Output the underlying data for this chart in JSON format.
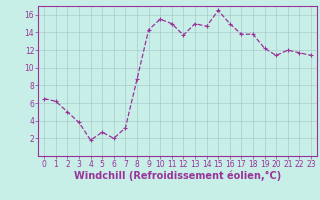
{
  "x": [
    0,
    1,
    2,
    3,
    4,
    5,
    6,
    7,
    8,
    9,
    10,
    11,
    12,
    13,
    14,
    15,
    16,
    17,
    18,
    19,
    20,
    21,
    22,
    23
  ],
  "y": [
    6.5,
    6.2,
    5.0,
    3.8,
    1.8,
    2.7,
    2.0,
    3.2,
    8.7,
    14.3,
    15.5,
    15.0,
    13.7,
    15.0,
    14.7,
    16.5,
    15.0,
    13.8,
    13.8,
    12.2,
    11.4,
    12.0,
    11.7,
    11.4
  ],
  "line_color": "#993399",
  "marker": "+",
  "background_color": "#c8eee8",
  "grid_color": "#aacccc",
  "xlabel": "Windchill (Refroidissement éolien,°C)",
  "ylim": [
    0,
    17
  ],
  "yticks": [
    2,
    4,
    6,
    8,
    10,
    12,
    14,
    16
  ],
  "xticks": [
    0,
    1,
    2,
    3,
    4,
    5,
    6,
    7,
    8,
    9,
    10,
    11,
    12,
    13,
    14,
    15,
    16,
    17,
    18,
    19,
    20,
    21,
    22,
    23
  ],
  "tick_color": "#993399",
  "tick_fontsize": 5.5,
  "xlabel_fontsize": 7.0,
  "label_color": "#993399",
  "spine_color": "#993399",
  "markersize": 3,
  "linewidth": 0.9
}
